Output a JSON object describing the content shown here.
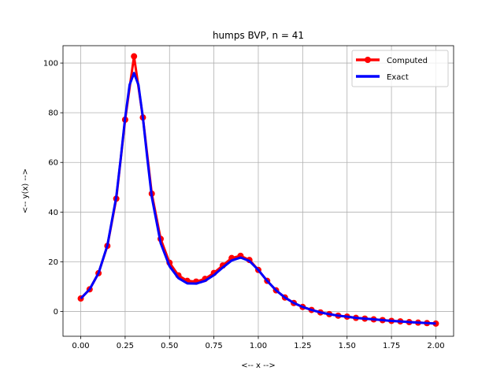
{
  "chart_data": {
    "type": "line",
    "title": "humps BVP, n = 41",
    "xlabel": "<-- x -->",
    "ylabel": "<-- y(x) -->",
    "xlim": [
      -0.1,
      2.1
    ],
    "ylim": [
      -10,
      107
    ],
    "xticks": [
      0.0,
      0.25,
      0.5,
      0.75,
      1.0,
      1.25,
      1.5,
      1.75,
      2.0
    ],
    "xtick_labels": [
      "0.00",
      "0.25",
      "0.50",
      "0.75",
      "1.00",
      "1.25",
      "1.50",
      "1.75",
      "2.00"
    ],
    "yticks": [
      0,
      20,
      40,
      60,
      80,
      100
    ],
    "ytick_labels": [
      "0",
      "20",
      "40",
      "60",
      "80",
      "100"
    ],
    "grid": true,
    "legend_position": "top-right",
    "series": [
      {
        "name": "Computed",
        "color": "#ff0000",
        "marker": "circle",
        "x": [
          0.0,
          0.05,
          0.1,
          0.15,
          0.2,
          0.25,
          0.3,
          0.35,
          0.4,
          0.45,
          0.5,
          0.55,
          0.6,
          0.65,
          0.7,
          0.75,
          0.8,
          0.85,
          0.9,
          0.95,
          1.0,
          1.05,
          1.1,
          1.15,
          1.2,
          1.25,
          1.3,
          1.35,
          1.4,
          1.45,
          1.5,
          1.55,
          1.6,
          1.65,
          1.7,
          1.75,
          1.8,
          1.85,
          1.9,
          1.95,
          2.0
        ],
        "y": [
          5.2,
          8.9,
          15.4,
          26.4,
          45.4,
          77.2,
          102.7,
          78.1,
          47.4,
          29.2,
          19.6,
          14.5,
          12.3,
          12.0,
          13.1,
          15.5,
          18.5,
          21.5,
          22.4,
          20.7,
          16.7,
          12.3,
          8.5,
          5.6,
          3.4,
          1.8,
          0.6,
          -0.4,
          -1.1,
          -1.7,
          -2.1,
          -2.6,
          -2.9,
          -3.2,
          -3.5,
          -3.8,
          -4.0,
          -4.3,
          -4.5,
          -4.7,
          -4.9
        ]
      },
      {
        "name": "Exact",
        "color": "#0000ff",
        "x": [
          0.0,
          0.05,
          0.1,
          0.15,
          0.2,
          0.225,
          0.25,
          0.275,
          0.3,
          0.325,
          0.35,
          0.375,
          0.4,
          0.45,
          0.5,
          0.55,
          0.6,
          0.65,
          0.7,
          0.75,
          0.8,
          0.85,
          0.9,
          0.95,
          1.0,
          1.05,
          1.1,
          1.15,
          1.2,
          1.25,
          1.3,
          1.35,
          1.4,
          1.45,
          1.5,
          1.55,
          1.6,
          1.65,
          1.7,
          1.75,
          1.8,
          1.85,
          1.9,
          1.95,
          2.0
        ],
        "y": [
          5.2,
          8.9,
          15.4,
          26.6,
          46.1,
          61.5,
          78.0,
          91.2,
          96.0,
          91.2,
          78.0,
          61.5,
          46.1,
          27.5,
          18.2,
          13.4,
          11.3,
          11.2,
          12.3,
          14.6,
          17.7,
          20.5,
          21.7,
          20.3,
          16.7,
          12.3,
          8.5,
          5.6,
          3.4,
          1.8,
          0.6,
          -0.4,
          -1.1,
          -1.7,
          -2.1,
          -2.6,
          -2.9,
          -3.2,
          -3.5,
          -3.8,
          -4.0,
          -4.3,
          -4.5,
          -4.7,
          -4.9
        ]
      }
    ]
  }
}
